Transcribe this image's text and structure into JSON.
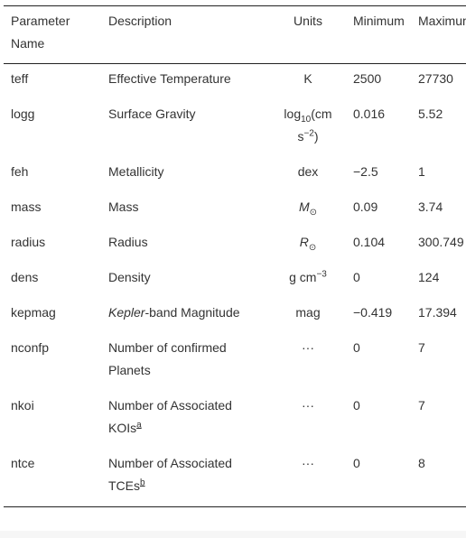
{
  "headers": {
    "name": "Parameter Name",
    "description": "Description",
    "units": "Units",
    "minimum": "Minimum",
    "maximum": "Maximum"
  },
  "rows": [
    {
      "name": "teff",
      "description": "Effective Temperature",
      "units": "K",
      "min": "2500",
      "max": "27730"
    },
    {
      "name": "logg",
      "description": "Surface Gravity",
      "units_base": "log",
      "units_sub": "10",
      "units_rest": "(cm s",
      "units_sup": "−2",
      "units_end": ")",
      "min": "0.016",
      "max": "5.52"
    },
    {
      "name": "feh",
      "description": "Metallicity",
      "units": "dex",
      "min": "−2.5",
      "max": "1"
    },
    {
      "name": "mass",
      "description": "Mass",
      "units_sym": "M",
      "units_sym_sub": "⊙",
      "min": "0.09",
      "max": "3.74"
    },
    {
      "name": "radius",
      "description": "Radius",
      "units_sym": "R",
      "units_sym_sub": "⊙",
      "min": "0.104",
      "max": "300.749"
    },
    {
      "name": "dens",
      "description": "Density",
      "units_base": "g cm",
      "units_sup": "−3",
      "min": "0",
      "max": "124"
    },
    {
      "name": "kepmag",
      "description_ital": "Kepler",
      "description_rest": "-band Magnitude",
      "units": "mag",
      "min": "−0.419",
      "max": "17.394"
    },
    {
      "name": "nconfp",
      "description": "Number of confirmed Planets",
      "units": "···",
      "min": "0",
      "max": "7"
    },
    {
      "name": "nkoi",
      "description": "Number of Associated KOIs",
      "footnote": "a",
      "units": "···",
      "min": "0",
      "max": "7"
    },
    {
      "name": "ntce",
      "description": "Number of Associated TCEs",
      "footnote": "b",
      "units": "···",
      "min": "0",
      "max": "8"
    }
  ]
}
